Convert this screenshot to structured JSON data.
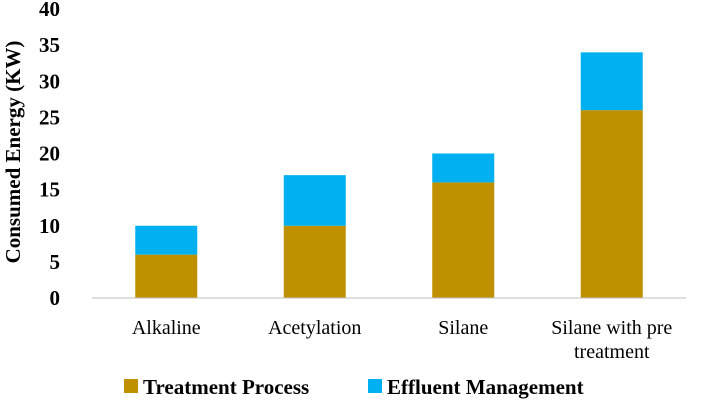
{
  "chart_data": {
    "type": "bar",
    "stacked": true,
    "categories": [
      "Alkaline",
      "Acetylation",
      "Silane",
      "Silane with pre treatment"
    ],
    "series": [
      {
        "name": "Treatment Process",
        "values": [
          6,
          10,
          16,
          26
        ],
        "color": "#bf9000"
      },
      {
        "name": "Effluent Management",
        "values": [
          4,
          7,
          4,
          8
        ],
        "color": "#00b0f0"
      }
    ],
    "ylabel": "Consumed Energy (KW)",
    "xlabel": "",
    "title": "",
    "ylim": [
      0,
      40
    ],
    "yticks": [
      0,
      5,
      10,
      15,
      20,
      25,
      30,
      35,
      40
    ],
    "grid": false,
    "legend": "bottom"
  }
}
